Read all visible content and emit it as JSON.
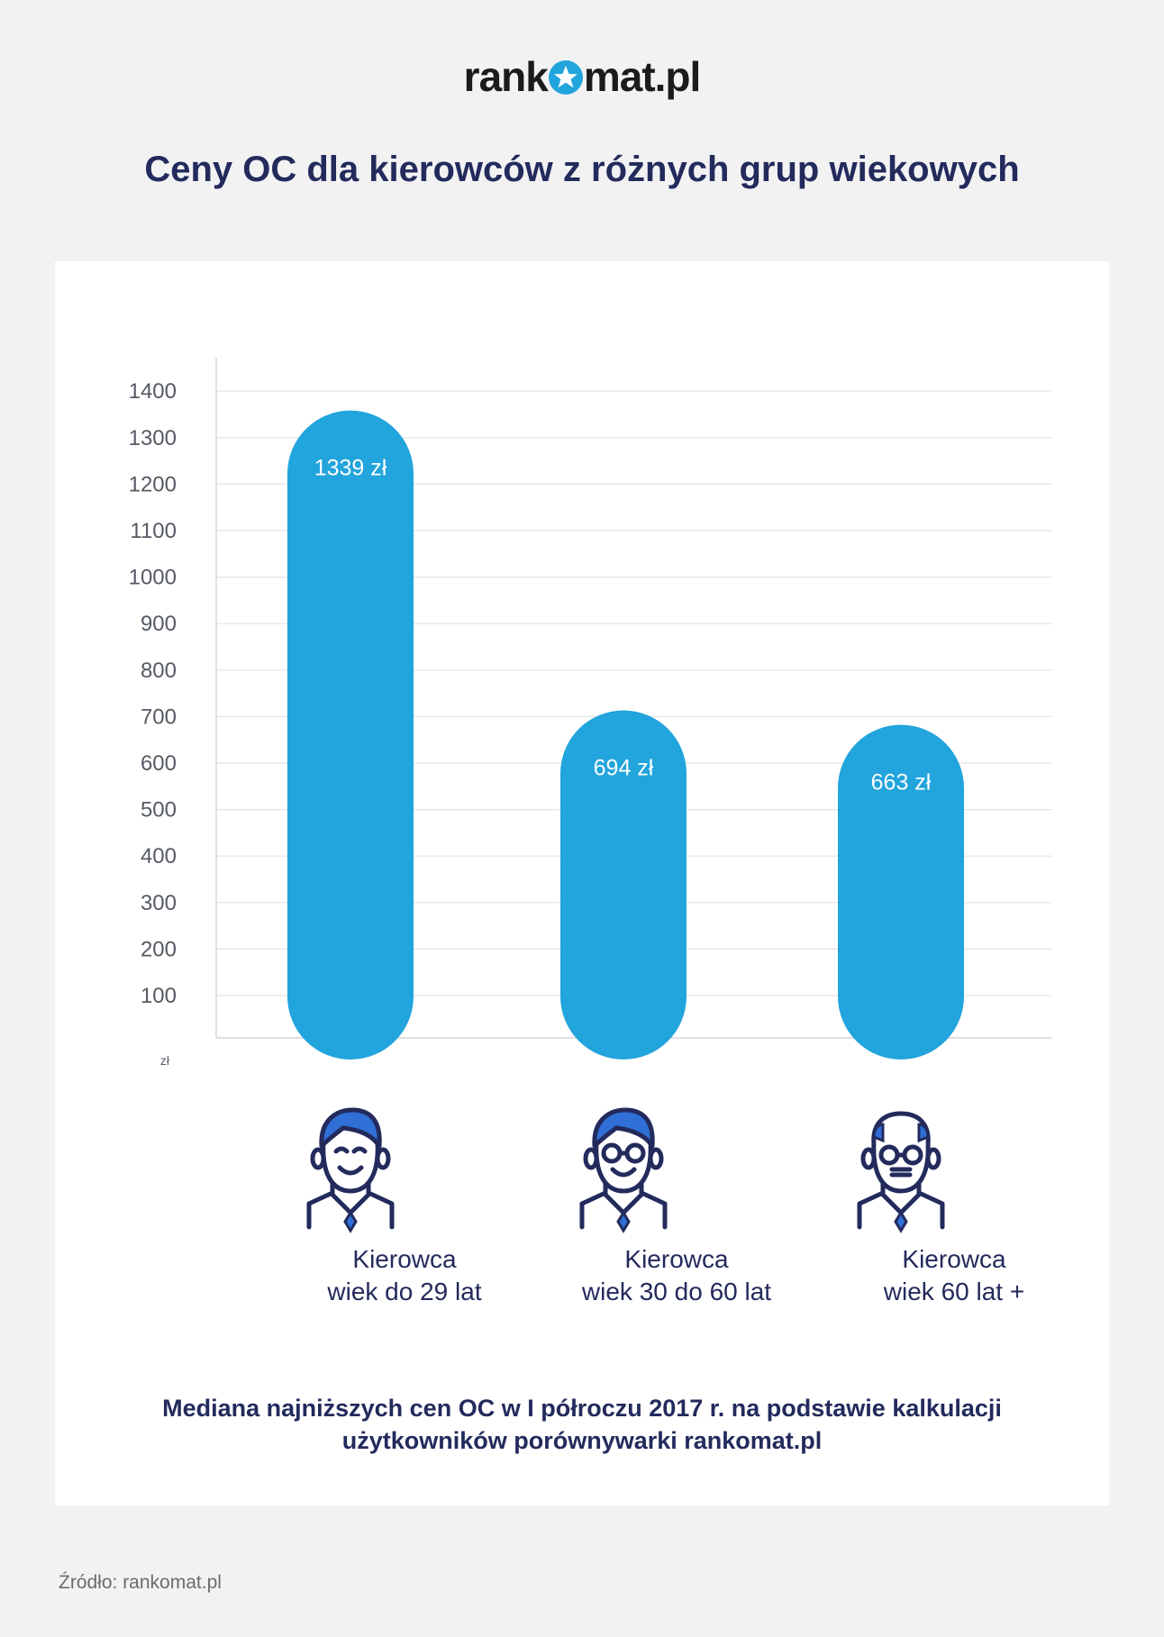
{
  "logo": {
    "prefix": "rank",
    "suffix": "mat.pl"
  },
  "title": "Ceny OC dla kierowców z różnych grup wiekowych",
  "chart_data": {
    "type": "bar",
    "categories": [
      "Kierowca wiek do 29 lat",
      "Kierowca wiek 30 do 60 lat",
      "Kierowca wiek 60 lat +"
    ],
    "values": [
      1339,
      694,
      663
    ],
    "data_labels": [
      "1339 zł",
      "694 zł",
      "663 zł"
    ],
    "yticks": [
      100,
      200,
      300,
      400,
      500,
      600,
      700,
      800,
      900,
      1000,
      1100,
      1200,
      1300,
      1400
    ],
    "ylim": [
      0,
      1400
    ],
    "yunit": "zł",
    "grid": true,
    "bar_color": "#22a4dc"
  },
  "categories_display": [
    {
      "line1": "Kierowca",
      "line2": "wiek do 29 lat",
      "icon": "young-driver-icon"
    },
    {
      "line1": "Kierowca",
      "line2": "wiek 30 do 60 lat",
      "icon": "middle-aged-driver-glasses-icon"
    },
    {
      "line1": "Kierowca",
      "line2": "wiek 60 lat +",
      "icon": "senior-driver-icon"
    }
  ],
  "footnote": {
    "line1": "Mediana najniższych cen OC w I półroczu 2017 r. na podstawie kalkulacji",
    "line2": "użytkowników porównywarki rankomat.pl"
  },
  "source": "Źródło: rankomat.pl",
  "colors": {
    "navy": "#232a5c",
    "blue": "#22a4dc",
    "hair": "#2f6fd6"
  }
}
